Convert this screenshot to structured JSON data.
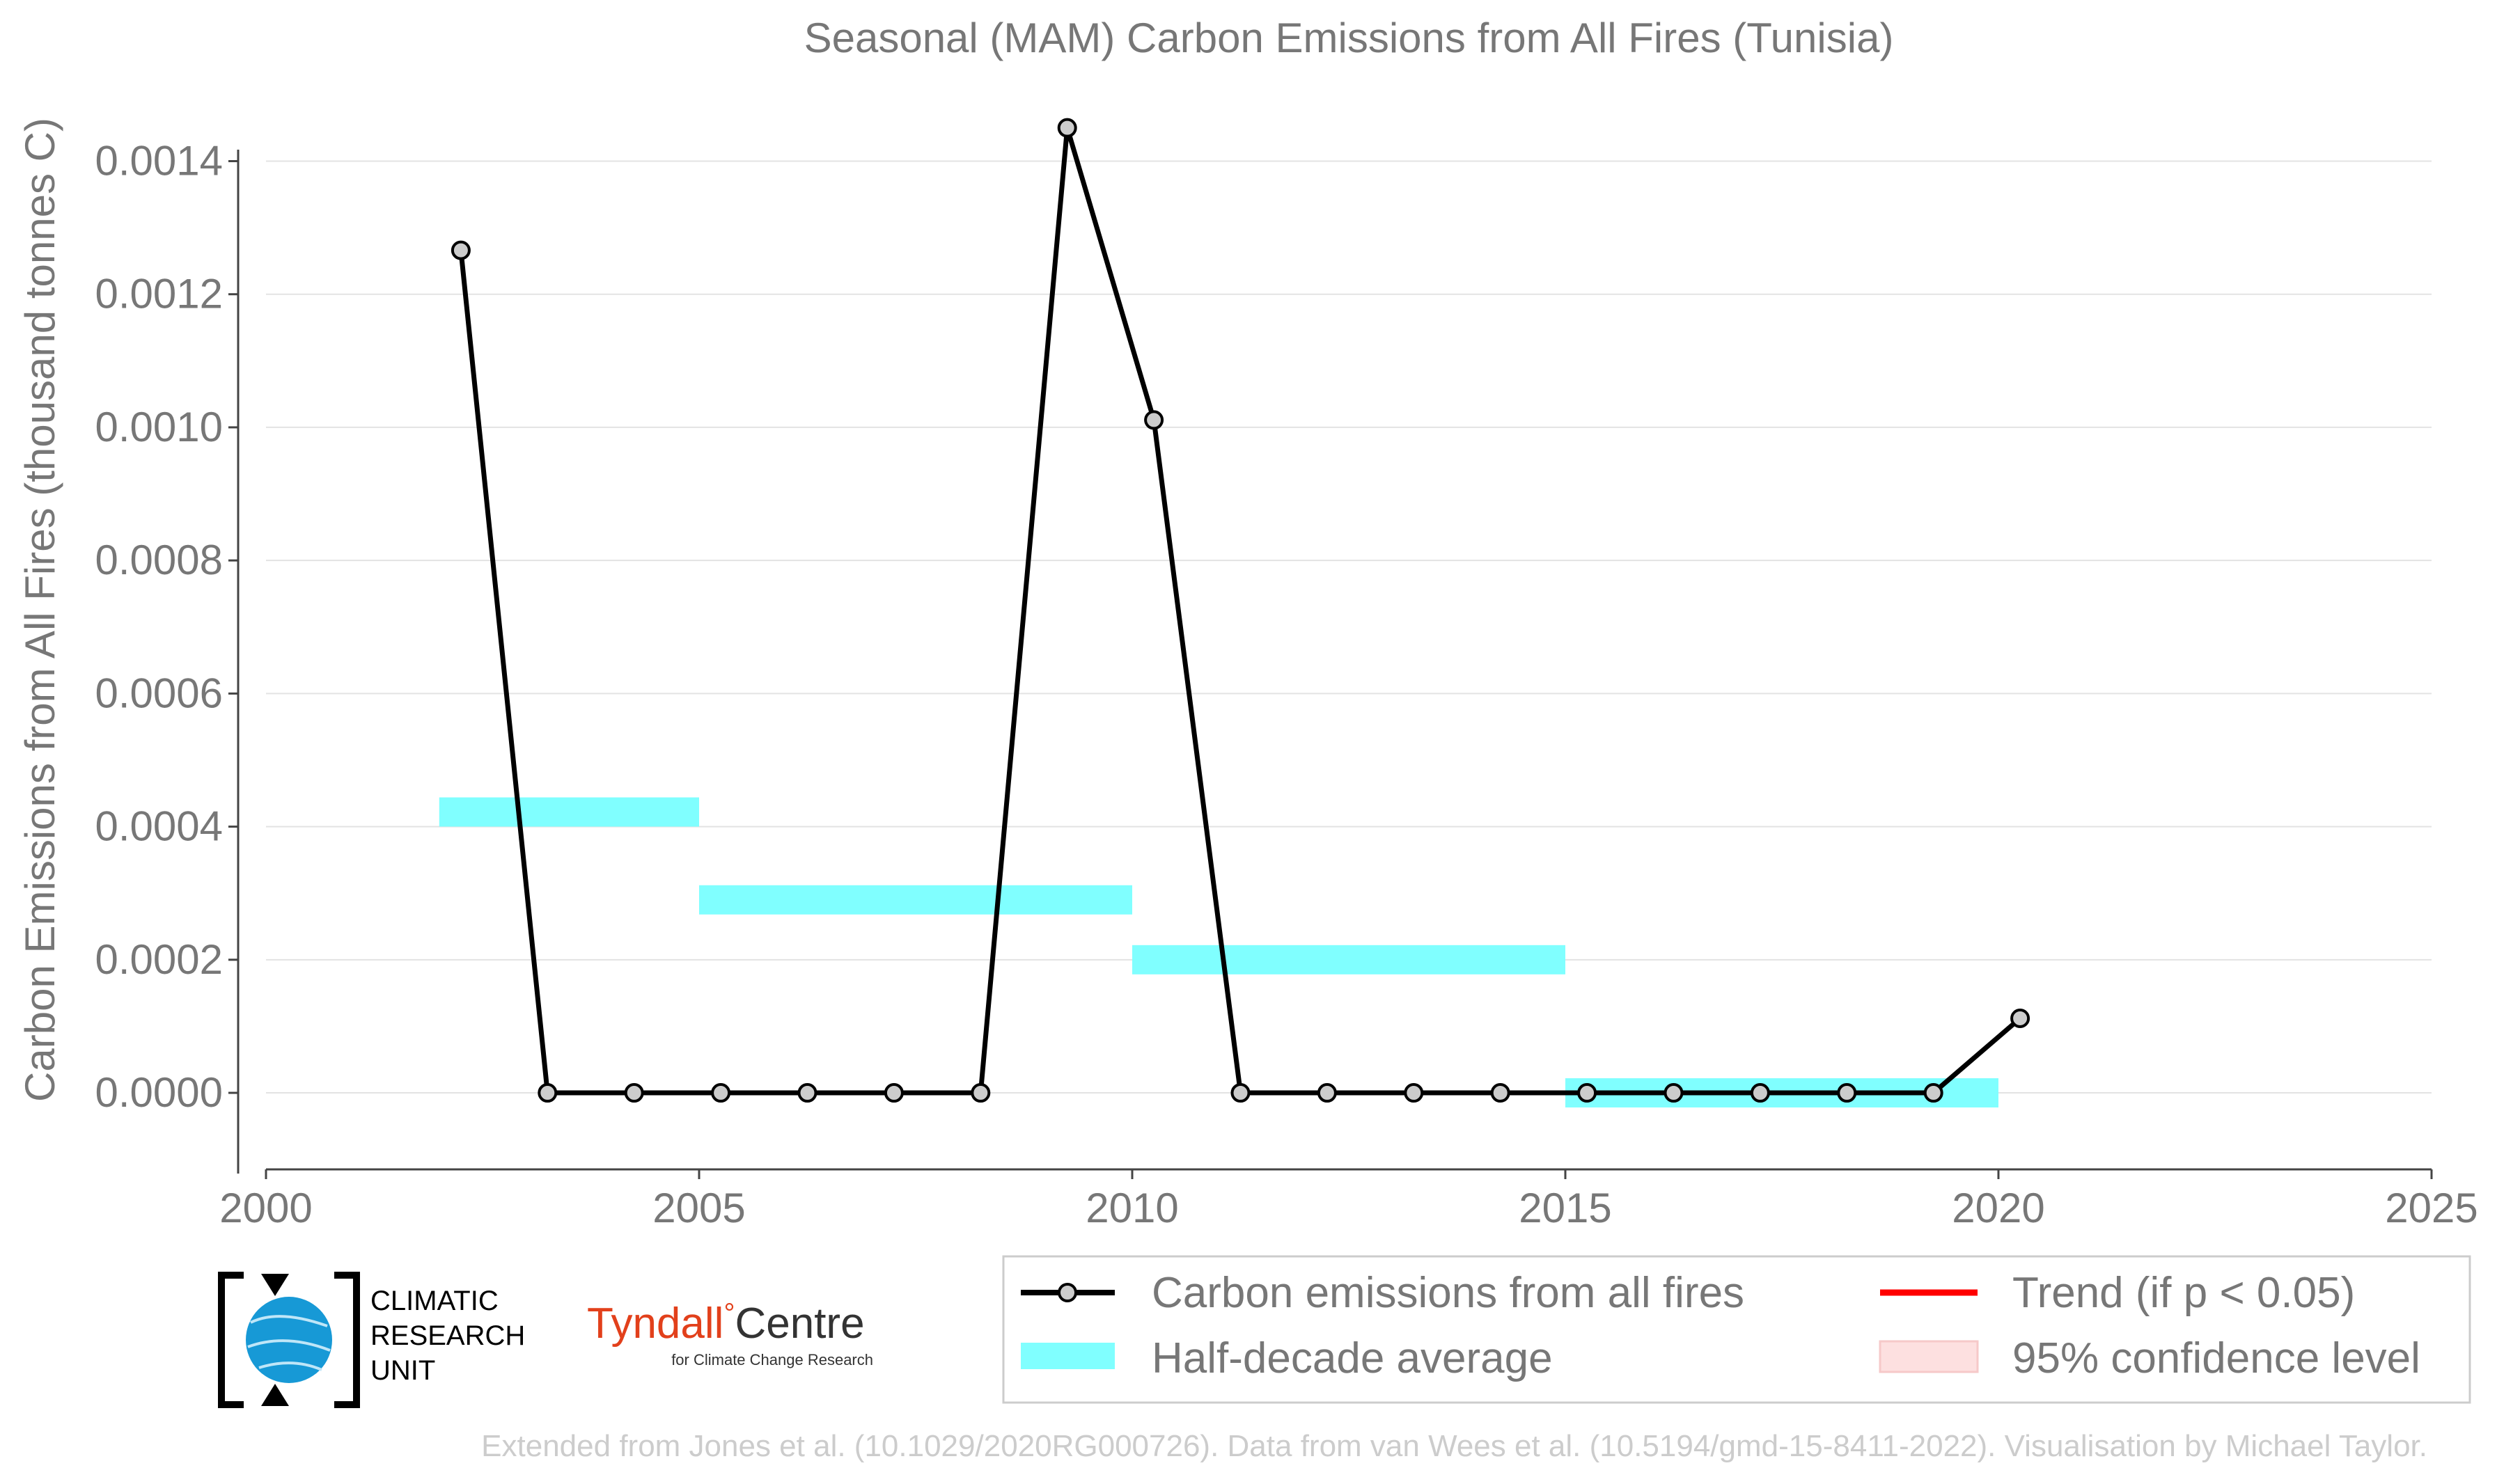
{
  "chart_data": {
    "type": "line",
    "title": "Seasonal (MAM) Carbon Emissions from All Fires (Tunisia)",
    "xlabel": "",
    "ylabel": "Carbon Emissions from All Fires (thousand tonnes C)",
    "xlim": [
      2000,
      2025
    ],
    "ylim": [
      -0.000115,
      0.00148
    ],
    "x_ticks": [
      2000,
      2005,
      2010,
      2015,
      2020,
      2025
    ],
    "y_ticks": [
      "0.0000",
      "0.0002",
      "0.0004",
      "0.0006",
      "0.0008",
      "0.0010",
      "0.0012",
      "0.0014"
    ],
    "grid": "horizontal",
    "series": [
      {
        "name": "Carbon emissions from all fires",
        "color": "#000000",
        "marker": "circle",
        "x": [
          2002.25,
          2003.25,
          2004.25,
          2005.25,
          2006.25,
          2007.25,
          2008.25,
          2009.25,
          2010.25,
          2011.25,
          2012.25,
          2013.25,
          2014.25,
          2015.25,
          2016.25,
          2017.25,
          2018.25,
          2019.25,
          2020.25
        ],
        "values": [
          0.001266,
          0.0,
          0.0,
          0.0,
          0.0,
          0.0,
          0.0,
          0.00145,
          0.001011,
          0.0,
          0.0,
          0.0,
          0.0,
          0.0,
          0.0,
          0.0,
          0.0,
          0.0,
          0.000112
        ]
      }
    ],
    "half_decade_average": {
      "name": "Half-decade average",
      "color": "#80ffff",
      "segments": [
        {
          "start": 2002,
          "end": 2005,
          "value": 0.000422
        },
        {
          "start": 2005,
          "end": 2010,
          "value": 0.00029
        },
        {
          "start": 2010,
          "end": 2015,
          "value": 0.0002
        },
        {
          "start": 2015,
          "end": 2020,
          "value": 0.0
        }
      ]
    },
    "legend": {
      "placement": "bottom-right",
      "entries": [
        {
          "label": "Carbon emissions from all fires",
          "kind": "line-marker",
          "color": "#000000"
        },
        {
          "label": "Trend (if p < 0.05)",
          "kind": "line",
          "color": "#ff0000"
        },
        {
          "label": "Half-decade average",
          "kind": "band",
          "color": "#80ffff"
        },
        {
          "label": "95% confidence level",
          "kind": "patch",
          "color": "#fde0e0"
        }
      ]
    },
    "credit": "Extended from Jones et al. (10.1029/2020RG000726). Data from van Wees et al. (10.5194/gmd-15-8411-2022). Visualisation by Michael Taylor.",
    "logos": {
      "cru_lines": [
        "CLIMATIC",
        "RESEARCH",
        "UNIT"
      ],
      "tyndall_main": "Tyndall",
      "tyndall_degree": "°",
      "tyndall_centre": "Centre",
      "tyndall_sub": "for Climate Change Research"
    }
  }
}
